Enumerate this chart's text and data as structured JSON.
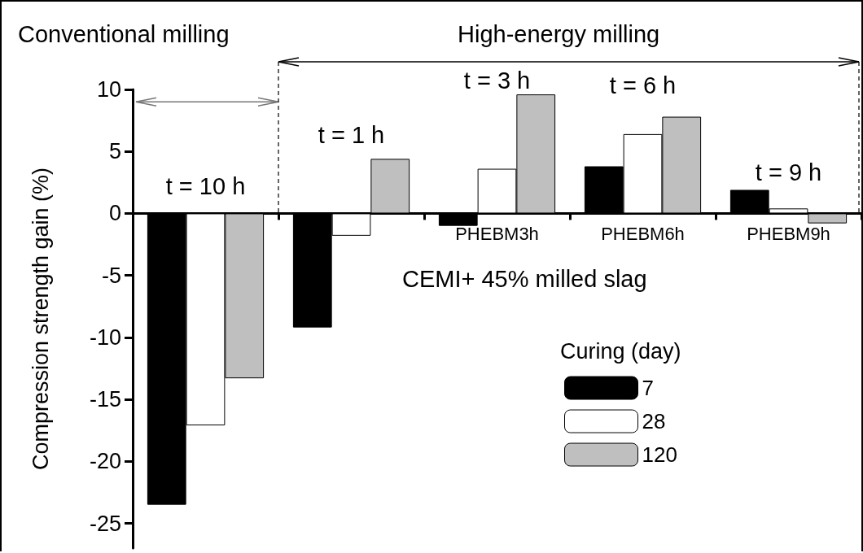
{
  "chart_data": {
    "type": "bar",
    "ylabel": "Compression strength gain (%)",
    "legend_title": "Curing (day)",
    "categories": [
      null,
      null,
      "PHEBM3h",
      "PHEBM6h",
      "PHEBM9h"
    ],
    "series": [
      {
        "name": "7",
        "color": "#000000",
        "values": [
          -23.5,
          -9.2,
          -1.0,
          3.8,
          1.9
        ]
      },
      {
        "name": "28",
        "color": "#ffffff",
        "values": [
          -17.1,
          -1.8,
          3.6,
          6.4,
          0.4
        ]
      },
      {
        "name": "120",
        "color": "#bfbfbf",
        "values": [
          -13.3,
          4.4,
          9.6,
          7.8,
          -0.8
        ]
      }
    ],
    "ylim": [
      -27,
      10
    ],
    "yticks": [
      -25,
      -20,
      -15,
      -10,
      -5,
      0,
      5,
      10
    ],
    "grid": false,
    "legend": "bottom right",
    "annotations": [
      "Conventional milling",
      "High-energy milling",
      "t = 10 h",
      "t = 1 h",
      "t = 3 h",
      "t = 6 h",
      "t = 9 h",
      "CEMI+ 45% milled slag"
    ]
  }
}
